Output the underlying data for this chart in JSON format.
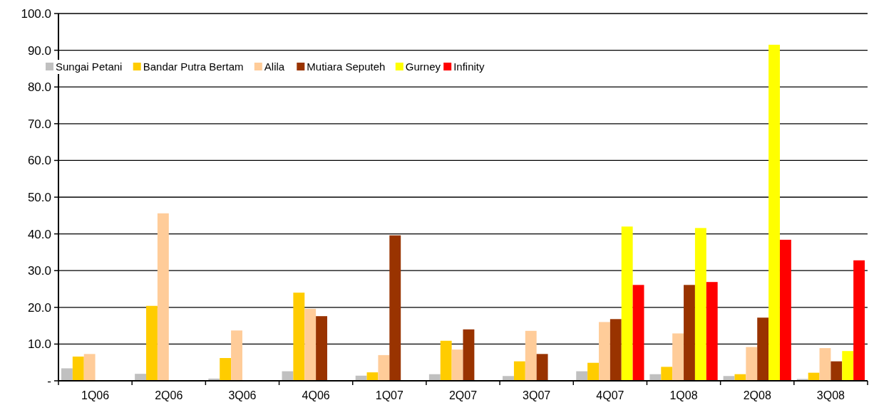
{
  "chart_data": {
    "type": "bar",
    "categories": [
      "1Q06",
      "2Q06",
      "3Q06",
      "4Q06",
      "1Q07",
      "2Q07",
      "3Q07",
      "4Q07",
      "1Q08",
      "2Q08",
      "3Q08"
    ],
    "series": [
      {
        "name": "Sungai Petani",
        "color": "#c0c0c0",
        "values": [
          3.4,
          1.9,
          0.6,
          2.6,
          1.4,
          1.8,
          1.3,
          2.6,
          1.8,
          1.3,
          0.5
        ]
      },
      {
        "name": "Bandar Putra Bertam",
        "color": "#ffcc00",
        "values": [
          6.6,
          20.4,
          6.2,
          24.0,
          2.3,
          10.9,
          5.3,
          4.9,
          3.8,
          1.8,
          2.2
        ]
      },
      {
        "name": "Alila",
        "color": "#ffcc99",
        "values": [
          7.3,
          45.6,
          13.7,
          19.6,
          7.0,
          8.5,
          13.6,
          16.0,
          12.9,
          9.2,
          8.9
        ]
      },
      {
        "name": "Mutiara Seputeh",
        "color": "#993300",
        "values": [
          null,
          null,
          null,
          17.6,
          39.6,
          14.0,
          7.3,
          16.8,
          26.1,
          17.2,
          5.3
        ]
      },
      {
        "name": "Gurney",
        "color": "#ffff00",
        "values": [
          null,
          null,
          null,
          null,
          null,
          null,
          null,
          42.0,
          41.6,
          91.5,
          8.1
        ]
      },
      {
        "name": "Infinity",
        "color": "#ff0000",
        "values": [
          null,
          null,
          null,
          null,
          null,
          null,
          null,
          26.1,
          26.9,
          38.4,
          32.8
        ]
      }
    ],
    "ylim": [
      0,
      100
    ],
    "yticks": [
      {
        "value": 0,
        "label": "-"
      },
      {
        "value": 10,
        "label": "10.0"
      },
      {
        "value": 20,
        "label": "20.0"
      },
      {
        "value": 30,
        "label": "30.0"
      },
      {
        "value": 40,
        "label": "40.0"
      },
      {
        "value": 50,
        "label": "50.0"
      },
      {
        "value": 60,
        "label": "60.0"
      },
      {
        "value": 70,
        "label": "70.0"
      },
      {
        "value": 80,
        "label": "80.0"
      },
      {
        "value": 90,
        "label": "90.0"
      },
      {
        "value": 100,
        "label": "100.0"
      }
    ],
    "grid": "y",
    "legend": "top left"
  }
}
